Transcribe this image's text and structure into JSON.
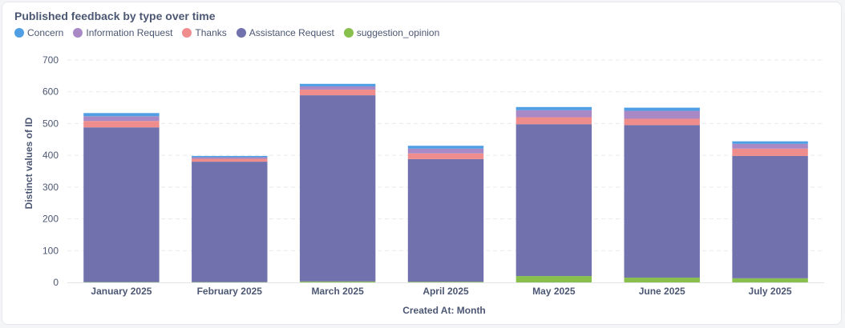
{
  "card": {
    "title": "Published feedback by type over time"
  },
  "colors": {
    "concern": "#509ee3",
    "information_request": "#a989c5",
    "thanks": "#ef8c8c",
    "assistance_request": "#7172ad",
    "suggestion_opinion": "#88bf4d"
  },
  "chart_data": {
    "type": "bar",
    "stacked": true,
    "title": "Published feedback by type over time",
    "xlabel": "Created At: Month",
    "ylabel": "Distinct values of ID",
    "ylim": [
      0,
      700
    ],
    "yticks": [
      0,
      100,
      200,
      300,
      400,
      500,
      600,
      700
    ],
    "grid": true,
    "legend_position": "top-left",
    "categories": [
      "January 2025",
      "February 2025",
      "March 2025",
      "April 2025",
      "May 2025",
      "June 2025",
      "July 2025"
    ],
    "legend_order": [
      "Concern",
      "Information Request",
      "Thanks",
      "Assistance Request",
      "suggestion_opinion"
    ],
    "series": [
      {
        "name": "suggestion_opinion",
        "color": "#88bf4d",
        "values": [
          1,
          1,
          3,
          2,
          20,
          15,
          13
        ]
      },
      {
        "name": "Assistance Request",
        "color": "#7172ad",
        "values": [
          487,
          379,
          586,
          386,
          478,
          480,
          385
        ]
      },
      {
        "name": "Thanks",
        "color": "#ef8c8c",
        "values": [
          20,
          9,
          18,
          18,
          22,
          20,
          23
        ]
      },
      {
        "name": "Information Request",
        "color": "#a989c5",
        "values": [
          15,
          5,
          10,
          15,
          22,
          25,
          15
        ]
      },
      {
        "name": "Concern",
        "color": "#509ee3",
        "values": [
          10,
          4,
          8,
          9,
          10,
          10,
          8
        ]
      }
    ]
  }
}
